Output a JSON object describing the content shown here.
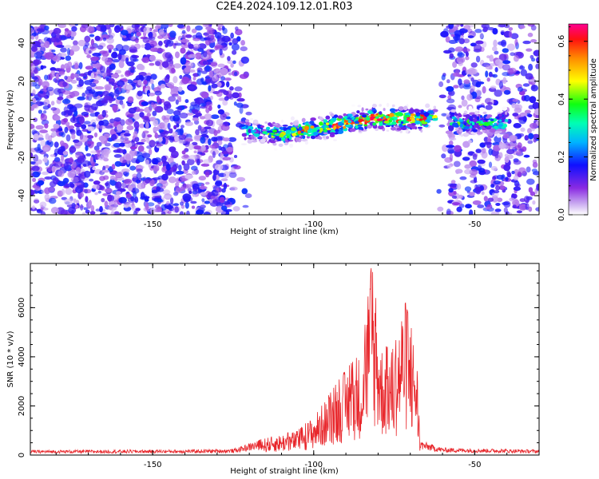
{
  "title": "C2E4.2024.109.12.01.R03",
  "colors": {
    "line": "#e8262b",
    "axis": "#000000",
    "colormap": [
      "#ffffff",
      "#dcc8f4",
      "#8a2be2",
      "#5a00ff",
      "#0000ff",
      "#00c8ff",
      "#00ffa0",
      "#00ff00",
      "#ffff00",
      "#ff8000",
      "#ff0000",
      "#ff0080"
    ]
  },
  "chart_data": [
    {
      "type": "heatmap",
      "xlabel": "Height of straight line (km)",
      "ylabel": "Frequency (Hz)",
      "xlim": [
        -188,
        -30
      ],
      "ylim": [
        -50,
        50
      ],
      "xticks": [
        -150,
        -100,
        -50
      ],
      "xtick_labels": [
        "-150",
        "-100",
        "-50"
      ],
      "yticks": [
        -40,
        -20,
        0,
        20,
        40
      ],
      "ytick_labels": [
        "-40",
        "-20",
        "0",
        "20",
        "40"
      ],
      "grid": false,
      "colorbar": {
        "label": "Normalized spectral amplitude",
        "range": [
          0,
          0.66
        ],
        "ticks": [
          0,
          0.2,
          0.4,
          0.6
        ],
        "tick_labels": [
          "0.0",
          "0.2",
          "0.4",
          "0.6"
        ]
      },
      "signal_band": {
        "description_points": [
          {
            "x": -120,
            "freq": -6
          },
          {
            "x": -110,
            "freq": -8
          },
          {
            "x": -100,
            "freq": -5
          },
          {
            "x": -90,
            "freq": -2
          },
          {
            "x": -80,
            "freq": 1
          },
          {
            "x": -70,
            "freq": 0
          },
          {
            "x": -62,
            "freq": 1
          },
          {
            "x": -55,
            "freq": -2
          },
          {
            "x": -45,
            "freq": -2
          }
        ],
        "peak_amplitude": 0.66
      },
      "noise_regions": [
        {
          "x_from": -188,
          "x_to": -120,
          "level": "dense"
        },
        {
          "x_from": -62,
          "x_to": -30,
          "level": "medium"
        }
      ]
    },
    {
      "type": "line",
      "xlabel": "Height of straight line (km)",
      "ylabel": "SNR (10 * v/v)",
      "xlim": [
        -188,
        -30
      ],
      "ylim": [
        0,
        7800
      ],
      "xticks": [
        -150,
        -100,
        -50
      ],
      "xtick_labels": [
        "-150",
        "-100",
        "-50"
      ],
      "yticks": [
        0,
        2000,
        4000,
        6000
      ],
      "ytick_labels": [
        "0",
        "2000",
        "4000",
        "6000"
      ],
      "grid": false,
      "series": [
        {
          "envelope_points": [
            {
              "x": -188,
              "y": 200
            },
            {
              "x": -140,
              "y": 220
            },
            {
              "x": -125,
              "y": 250
            },
            {
              "x": -115,
              "y": 700
            },
            {
              "x": -105,
              "y": 1000
            },
            {
              "x": -100,
              "y": 1600
            },
            {
              "x": -95,
              "y": 2500
            },
            {
              "x": -90,
              "y": 3500
            },
            {
              "x": -85,
              "y": 4200
            },
            {
              "x": -82,
              "y": 7800
            },
            {
              "x": -79,
              "y": 4500
            },
            {
              "x": -75,
              "y": 4300
            },
            {
              "x": -72,
              "y": 6500
            },
            {
              "x": -68,
              "y": 4200
            },
            {
              "x": -67,
              "y": 600
            },
            {
              "x": -60,
              "y": 300
            },
            {
              "x": -30,
              "y": 220
            }
          ]
        }
      ]
    }
  ]
}
